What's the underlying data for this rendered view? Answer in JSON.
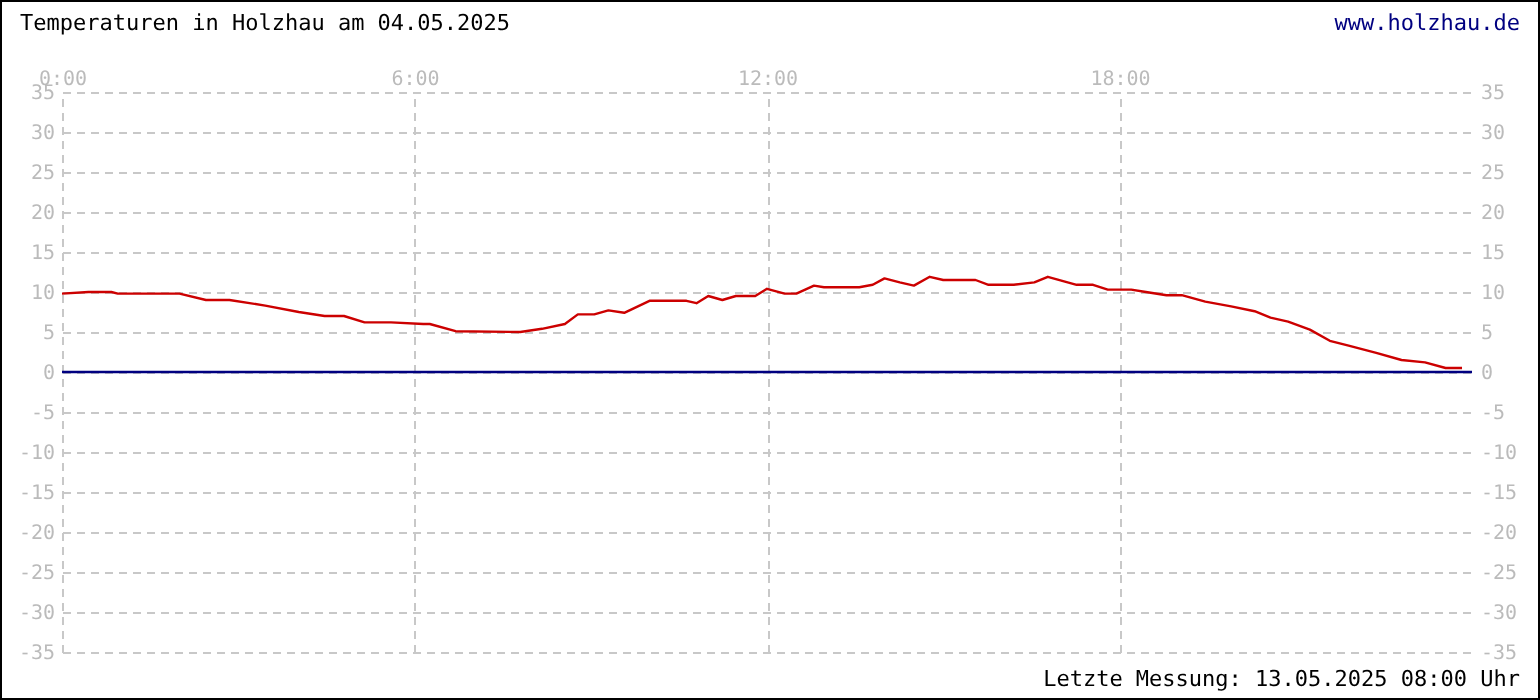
{
  "chart_data": {
    "type": "line",
    "title": "Temperaturen in Holzhau am 04.05.2025",
    "annotations": [
      "www.holzhau.de",
      "Letzte Messung: 13.05.2025 08:00 Uhr"
    ],
    "x": [
      0,
      0.45,
      0.84,
      0.95,
      2,
      2.45,
      2.85,
      3.46,
      4.03,
      4.47,
      4.8,
      5.15,
      5.6,
      6.15,
      6.26,
      6.7,
      7.8,
      8.17,
      8.56,
      8.78,
      9.06,
      9.3,
      9.57,
      10,
      10.63,
      10.8,
      11,
      11.24,
      11.47,
      11.8,
      12,
      12.3,
      12.5,
      12.8,
      12.97,
      13.57,
      13.8,
      14,
      14.26,
      14.5,
      14.77,
      15,
      15.55,
      15.77,
      16.2,
      16.55,
      16.78,
      17.27,
      17.55,
      17.8,
      18.2,
      18.45,
      18.8,
      19.06,
      19.46,
      19.9,
      20.3,
      20.57,
      20.87,
      21.24,
      21.58,
      21.9,
      22.37,
      22.8,
      23.2,
      23.55,
      23.83
    ],
    "series": [
      {
        "color": "#cc0000",
        "values": [
          9.8,
          10,
          10,
          9.8,
          9.8,
          9,
          9,
          8.3,
          7.5,
          7,
          7,
          6.2,
          6.2,
          6,
          6,
          5.1,
          5,
          5.4,
          6,
          7.2,
          7.2,
          7.7,
          7.4,
          8.9,
          8.9,
          8.6,
          9.5,
          9,
          9.5,
          9.5,
          10.4,
          9.8,
          9.8,
          10.8,
          10.6,
          10.6,
          10.9,
          11.7,
          11.2,
          10.8,
          11.9,
          11.5,
          11.5,
          10.9,
          10.9,
          11.2,
          11.9,
          10.9,
          10.9,
          10.3,
          10.3,
          10,
          9.6,
          9.6,
          8.8,
          8.2,
          7.6,
          6.8,
          6.3,
          5.3,
          3.9,
          3.3,
          2.4,
          1.5,
          1.2,
          0.5,
          0.5
        ]
      }
    ],
    "xlim": [
      0,
      24
    ],
    "xticks": [
      {
        "value": 0,
        "label": "0:00"
      },
      {
        "value": 6,
        "label": "6:00"
      },
      {
        "value": 12,
        "label": "12:00"
      },
      {
        "value": 18,
        "label": "18:00"
      }
    ],
    "ylim": [
      -35,
      35
    ],
    "yticks": [
      -35,
      -30,
      -25,
      -20,
      -15,
      -10,
      -5,
      0,
      5,
      10,
      15,
      20,
      25,
      30,
      35
    ],
    "y2lim": [
      -35,
      35
    ],
    "y2ticks": [
      -35,
      -30,
      -25,
      -20,
      -15,
      -10,
      -5,
      0,
      5,
      10,
      15,
      20,
      25,
      30,
      35
    ],
    "ref_lines": [
      {
        "axis": "y",
        "value": 0,
        "color": "#000080"
      }
    ],
    "grid": true,
    "marker": "none",
    "line_style": "solid"
  }
}
